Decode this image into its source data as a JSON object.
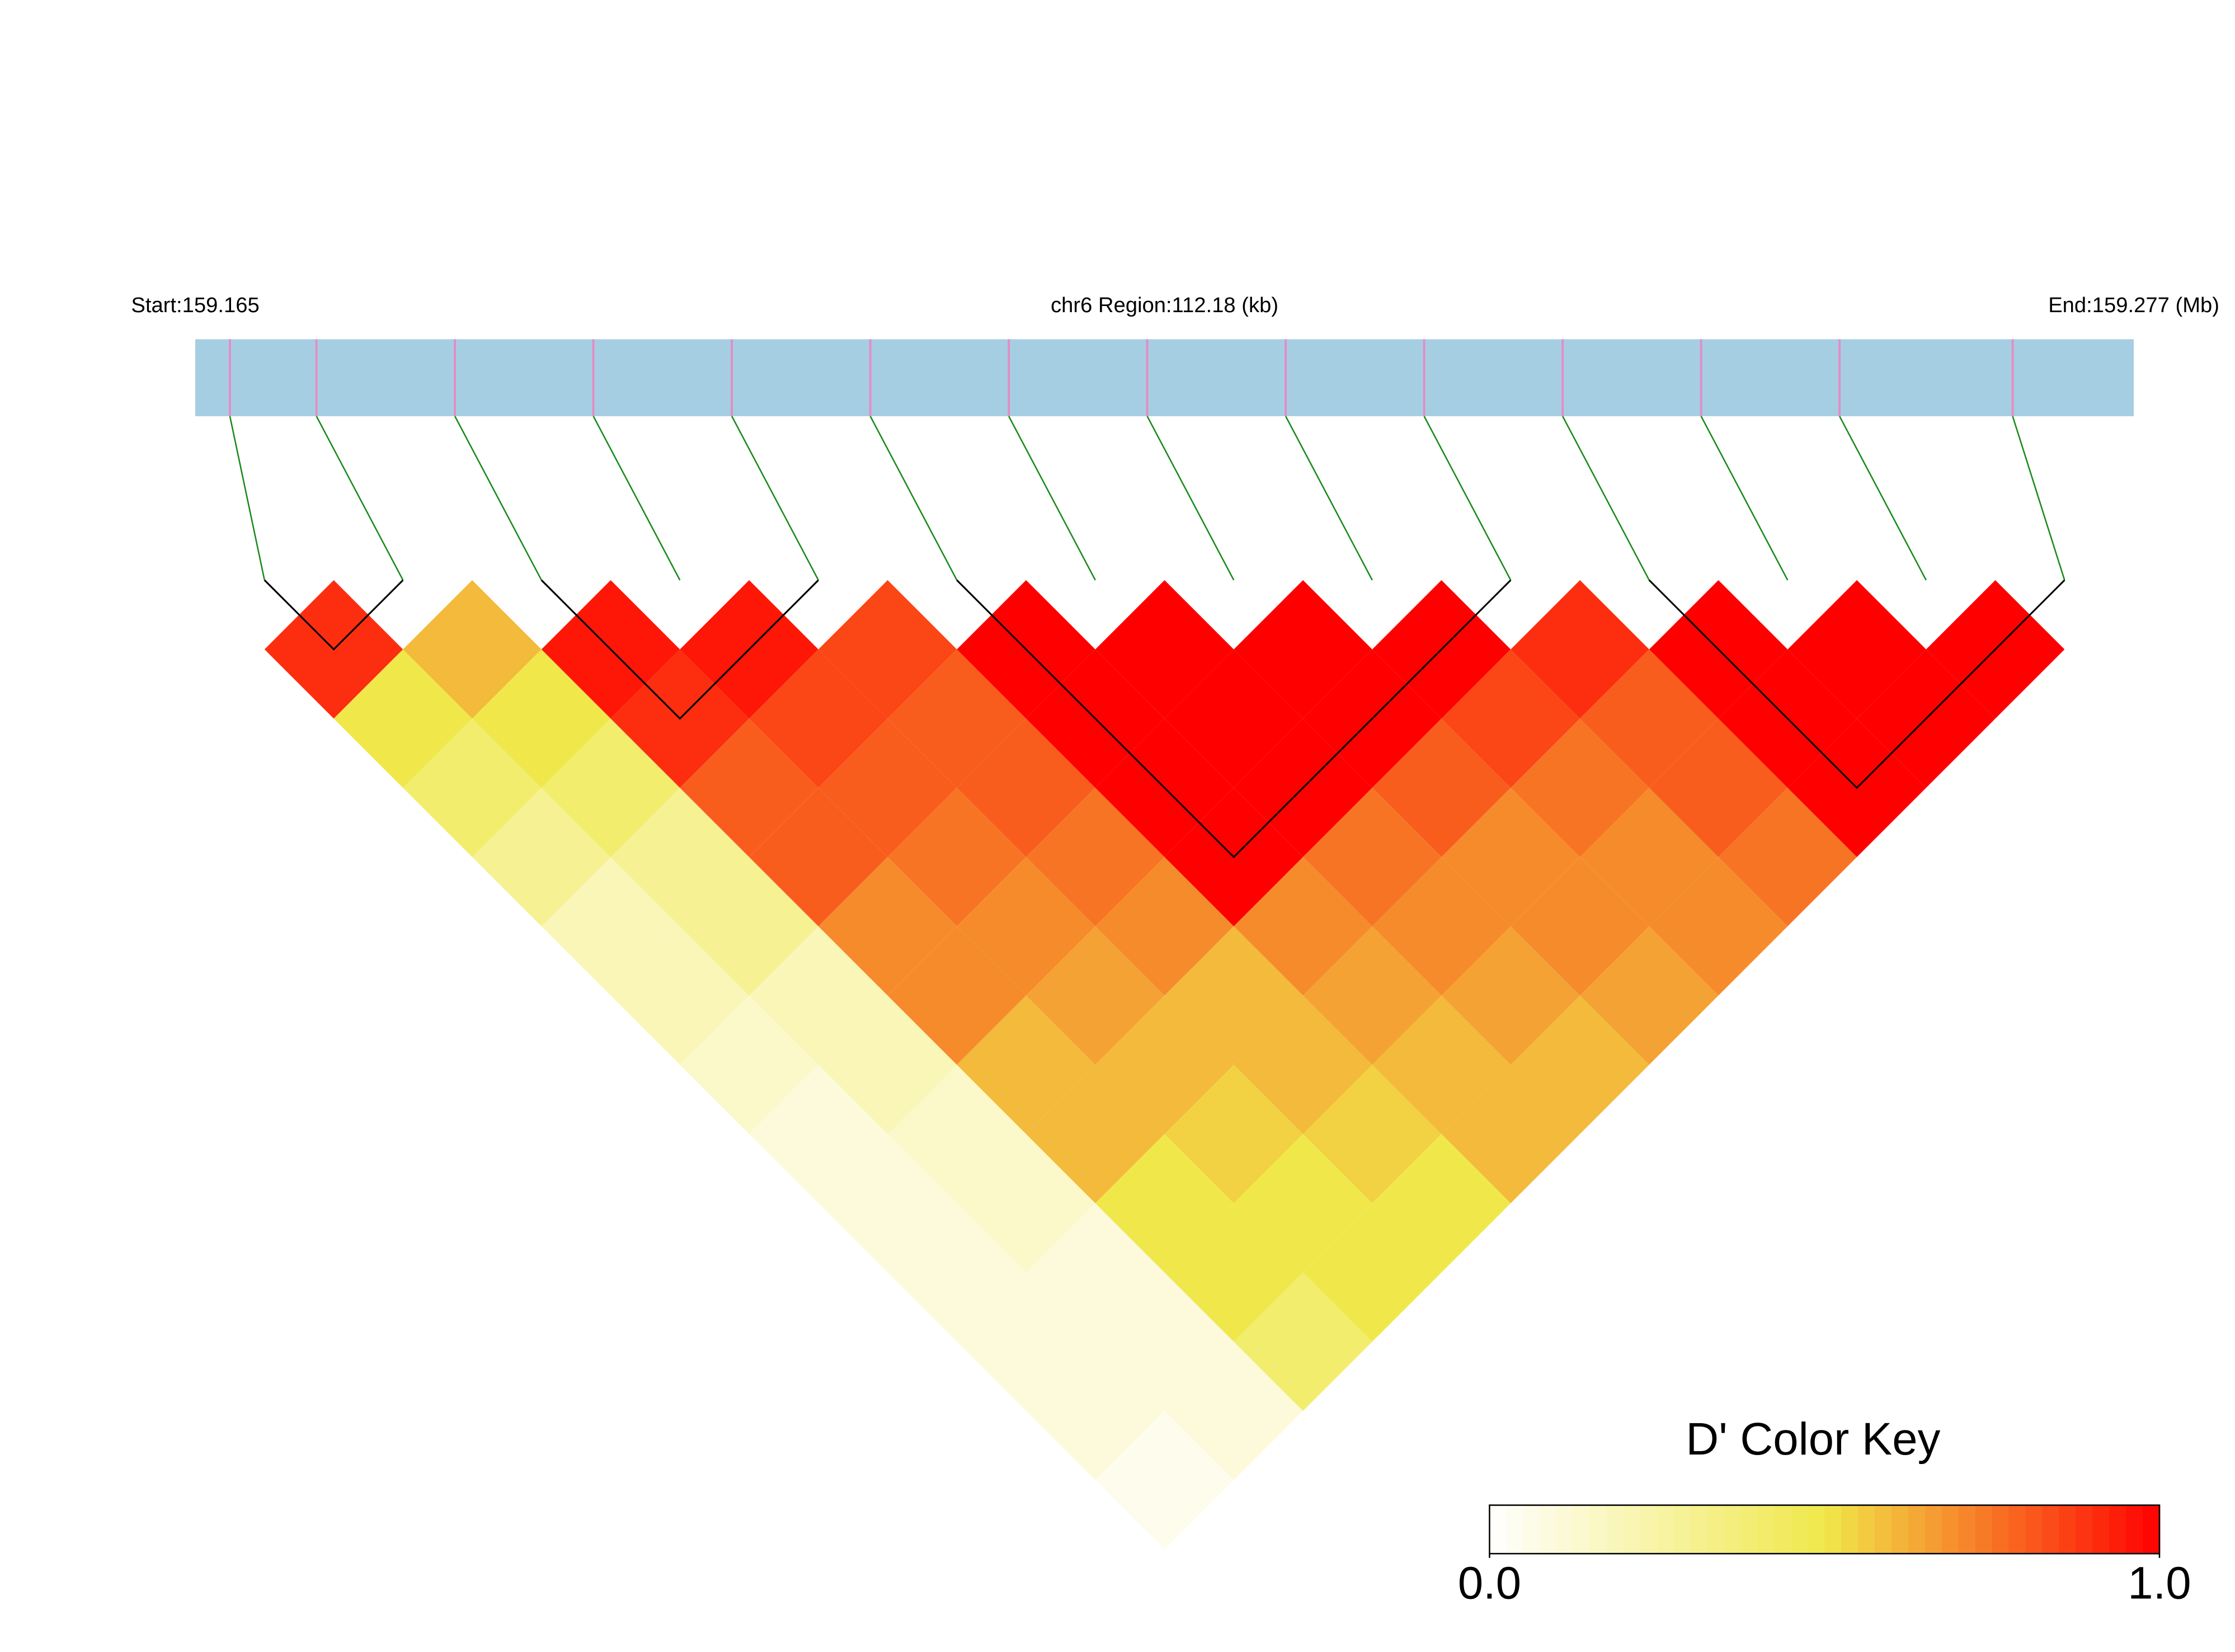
{
  "chart_data": {
    "type": "ld-heatmap",
    "start_label": "Start:159.165",
    "region_label": "chr6 Region:112.18 (kb)",
    "end_label": "End:159.277 (Mb)",
    "xlim": [
      159.165,
      159.277
    ],
    "positions": [
      159.167,
      159.172,
      159.18,
      159.188,
      159.196,
      159.204,
      159.212,
      159.22,
      159.228,
      159.236,
      159.244,
      159.252,
      159.26,
      159.27
    ],
    "d_prime": [
      [
        0.9,
        0.5,
        0.4,
        0.3,
        0.2,
        0.2,
        0.15,
        0.1,
        0.1,
        0.1,
        0.1,
        0.1,
        0.05
      ],
      [
        0.6,
        0.5,
        0.4,
        0.3,
        0.3,
        0.2,
        0.2,
        0.15,
        0.15,
        0.1,
        0.1,
        0.1
      ],
      [
        0.95,
        0.9,
        0.8,
        0.8,
        0.7,
        0.7,
        0.6,
        0.6,
        0.5,
        0.5,
        0.4
      ],
      [
        0.95,
        0.85,
        0.8,
        0.75,
        0.7,
        0.65,
        0.6,
        0.55,
        0.5,
        0.5
      ],
      [
        0.85,
        0.8,
        0.8,
        0.75,
        0.7,
        0.6,
        0.6,
        0.55,
        0.5
      ],
      [
        1,
        1,
        1,
        1,
        0.7,
        0.65,
        0.6,
        0.6
      ],
      [
        1,
        1,
        1,
        0.75,
        0.7,
        0.65,
        0.6
      ],
      [
        1,
        1,
        0.8,
        0.7,
        0.7,
        0.65
      ],
      [
        1,
        0.85,
        0.75,
        0.7,
        0.7
      ],
      [
        0.9,
        0.8,
        0.8,
        0.75
      ],
      [
        1,
        1,
        1
      ],
      [
        1,
        1
      ],
      [
        1
      ]
    ],
    "blocks": [
      [
        0,
        1
      ],
      [
        2,
        4
      ],
      [
        5,
        9
      ],
      [
        10,
        13
      ]
    ],
    "key_title": "D' Color Key",
    "key_lim": [
      0,
      1
    ],
    "key_ticks": [
      {
        "value": 0,
        "label": "0.0"
      },
      {
        "value": 1,
        "label": "1.0"
      }
    ],
    "colors": [
      "#ffffff",
      "#f0e84a",
      "#ff0000"
    ],
    "bar_color": "#a6cee3",
    "snp_color": "#e78ac3",
    "link_color": "#1a8a1a"
  }
}
